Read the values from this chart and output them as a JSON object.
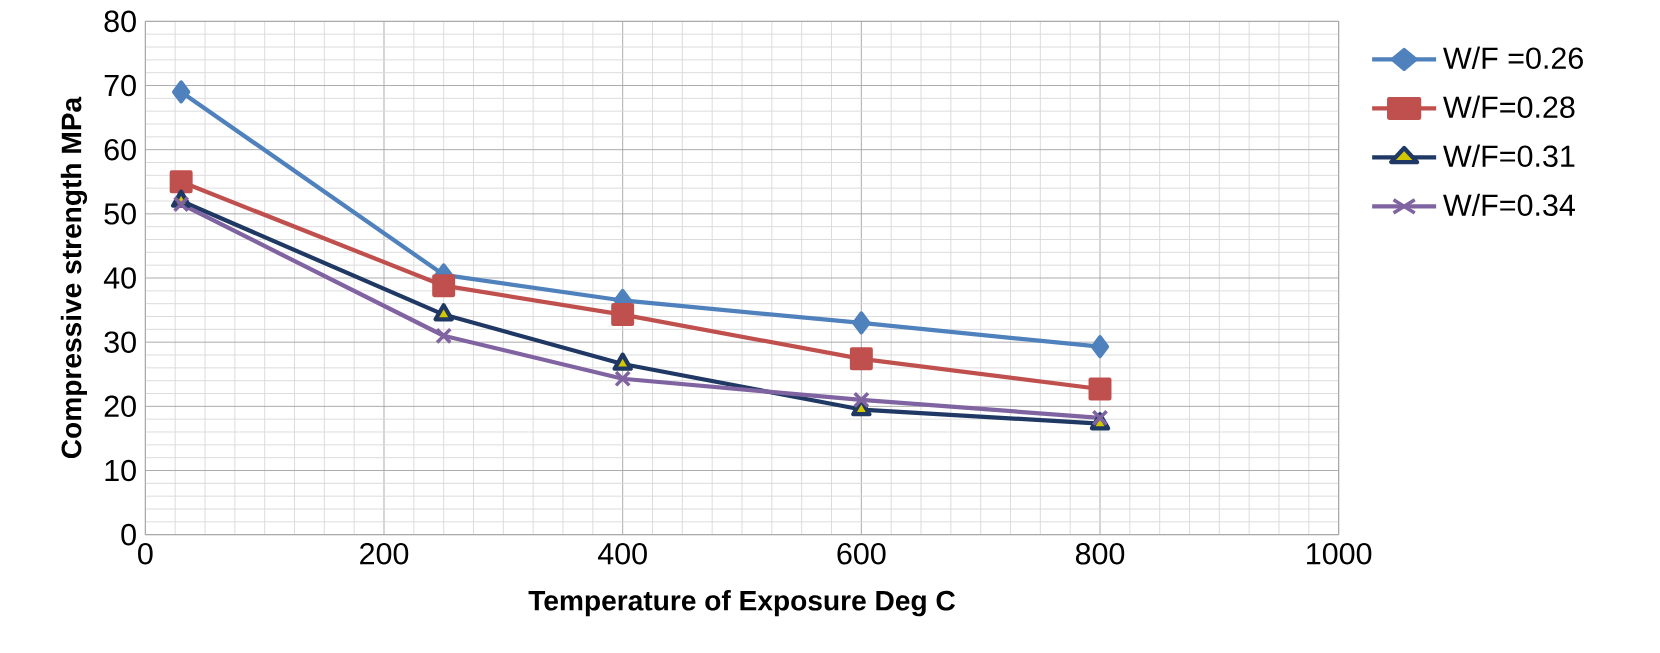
{
  "chart_data": {
    "type": "line",
    "xlabel": "Temperature of Exposure Deg C",
    "ylabel": "Compressive strength MPa",
    "x": [
      30,
      250,
      400,
      600,
      800
    ],
    "xlim": [
      0,
      1000
    ],
    "xticks": [
      0,
      200,
      400,
      600,
      800,
      1000
    ],
    "ylim": [
      0,
      80
    ],
    "yticks": [
      0,
      10,
      20,
      30,
      40,
      50,
      60,
      70,
      80
    ],
    "grid": true,
    "legend": "right",
    "line_style": "solid",
    "series": [
      {
        "name": "W/F =0.26",
        "color": "#4f81bd",
        "marker": "diamond",
        "values": [
          69,
          40.5,
          36.5,
          33,
          29.3
        ]
      },
      {
        "name": "W/F=0.28",
        "color": "#c0504d",
        "marker": "square",
        "values": [
          55,
          38.8,
          34.3,
          27.4,
          22.7
        ]
      },
      {
        "name": "W/F=0.31",
        "color": "#1f3864",
        "marker": "triangle",
        "values": [
          52,
          34.3,
          26.6,
          19.5,
          17.3
        ]
      },
      {
        "name": "W/F=0.34",
        "color": "#8064a2",
        "marker": "cross",
        "values": [
          51.5,
          31,
          24.3,
          21,
          18.2
        ]
      }
    ]
  }
}
